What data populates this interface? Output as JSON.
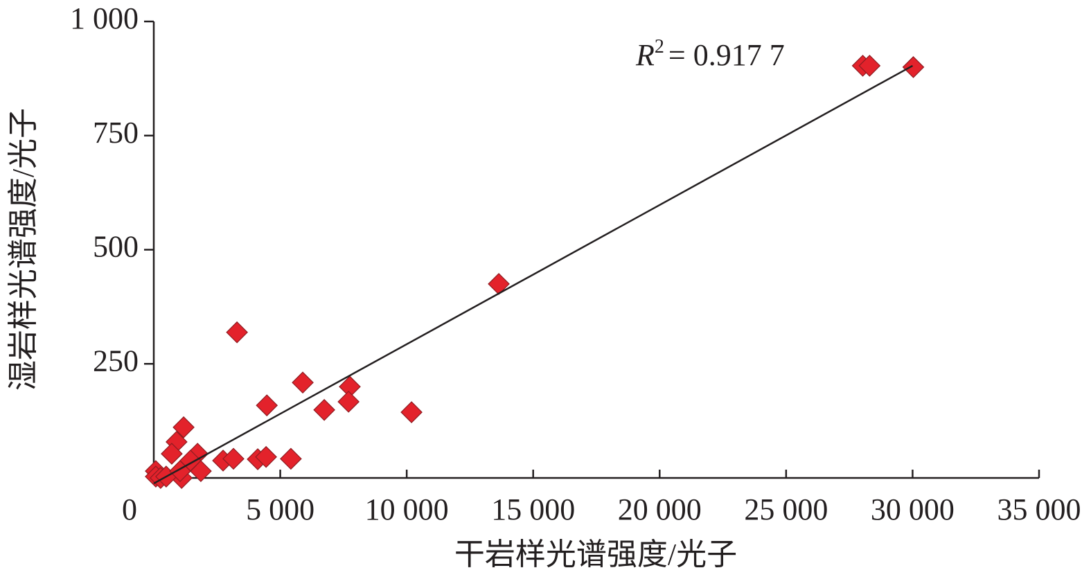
{
  "chart_data": {
    "type": "scatter",
    "xlabel": "干岩样光谱强度/光子",
    "ylabel": "湿岩样光谱强度/光子",
    "xlim": [
      0,
      35000
    ],
    "ylim": [
      0,
      1000
    ],
    "xticks": [
      {
        "value": 0,
        "label": "0"
      },
      {
        "value": 5000,
        "label": "5 000"
      },
      {
        "value": 10000,
        "label": "10 000"
      },
      {
        "value": 15000,
        "label": "15 000"
      },
      {
        "value": 20000,
        "label": "20 000"
      },
      {
        "value": 25000,
        "label": "25 000"
      },
      {
        "value": 30000,
        "label": "30 000"
      },
      {
        "value": 35000,
        "label": "35 000"
      }
    ],
    "yticks": [
      250,
      500,
      750,
      {
        "value": 1000,
        "label": "1 000"
      }
    ],
    "color": "#e3222b",
    "x": [
      28030,
      28300,
      30030,
      13640,
      3290,
      5890,
      7750,
      7700,
      4470,
      6740,
      10190,
      1180,
      900,
      710,
      1730,
      2740,
      3150,
      4110,
      4440,
      5420,
      1860,
      1260,
      1100,
      80,
      80,
      270,
      490,
      1040,
      1450
    ],
    "values": [
      903,
      903,
      900,
      425,
      319,
      209,
      200,
      167,
      159,
      149,
      144,
      111,
      79,
      53,
      53,
      38,
      42,
      41,
      46,
      42,
      15,
      27,
      0,
      15,
      3,
      0,
      3,
      15,
      38
    ],
    "trendline": {
      "x": [
        0,
        30000
      ],
      "y": [
        -12,
        903
      ],
      "color": "#231f20"
    },
    "annotation": {
      "symbol": "R",
      "exponent": "2",
      "text": "= 0.917 7"
    }
  }
}
